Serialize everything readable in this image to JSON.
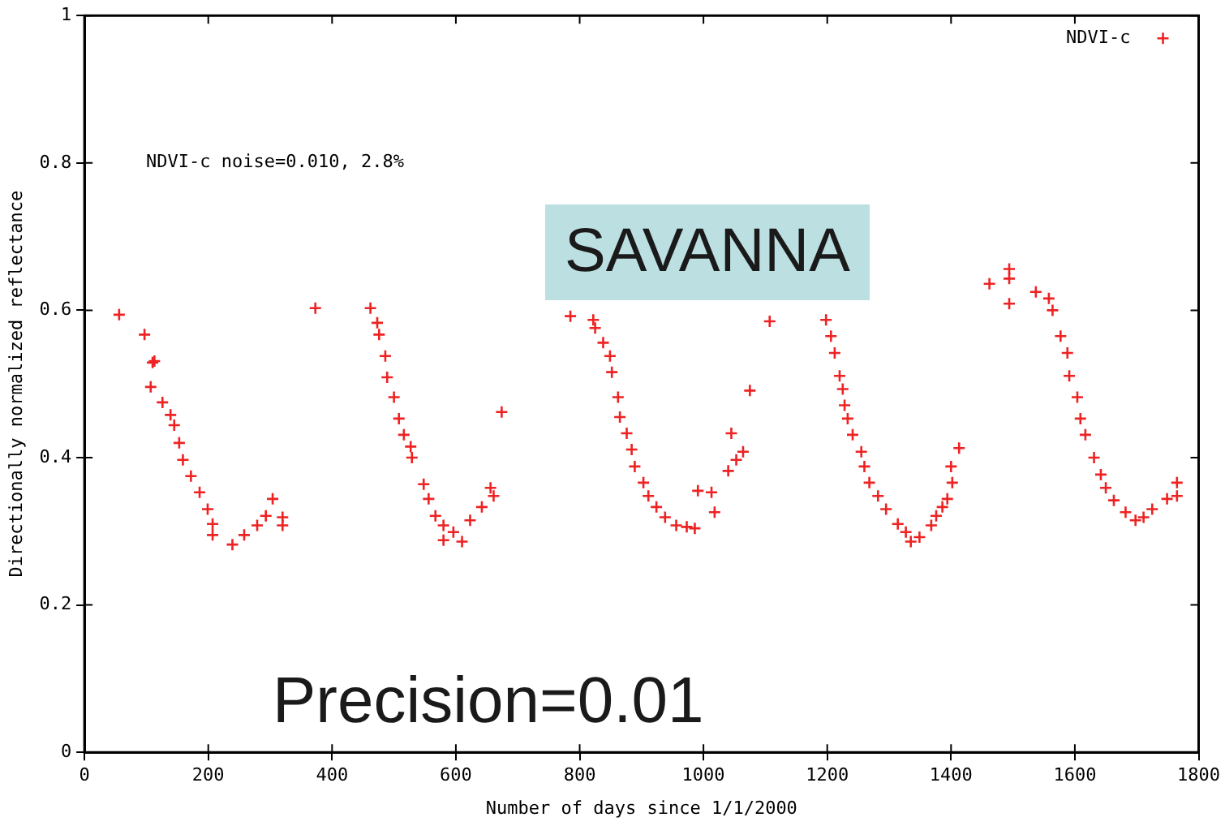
{
  "chart_data": {
    "type": "scatter",
    "xlabel": "Number of days since 1/1/2000",
    "ylabel": "Directionally normalized reflectance",
    "xlim": [
      0,
      1800
    ],
    "xticks": [
      0,
      200,
      400,
      600,
      800,
      1000,
      1200,
      1400,
      1600,
      1800
    ],
    "ylim": [
      0,
      1
    ],
    "yticks": [
      0,
      0.2,
      0.4,
      0.6,
      0.8,
      1
    ],
    "grid": false,
    "legend": "top right",
    "marker": "cross",
    "annotations": [
      "NDVI-c noise=0.010, 2.8%",
      "SAVANNA",
      "Precision=0.01"
    ],
    "series": [
      {
        "name": "NDVI-c",
        "color": "#ee2222",
        "x": [
          56,
          97,
          110,
          113,
          107,
          126,
          139,
          145,
          153,
          159,
          172,
          186,
          199,
          207,
          207,
          239,
          258,
          279,
          293,
          304,
          320,
          320,
          373,
          462,
          473,
          476,
          486,
          489,
          500,
          508,
          516,
          527,
          529,
          548,
          556,
          567,
          580,
          596,
          610,
          580,
          623,
          642,
          656,
          661,
          674,
          785,
          822,
          825,
          838,
          849,
          852,
          862,
          865,
          876,
          884,
          889,
          903,
          911,
          924,
          938,
          956,
          973,
          986,
          991,
          1013,
          1018,
          1040,
          1053,
          1064,
          1045,
          1075,
          1107,
          1198,
          1206,
          1212,
          1220,
          1225,
          1228,
          1233,
          1241,
          1255,
          1260,
          1268,
          1282,
          1295,
          1314,
          1327,
          1335,
          1349,
          1368,
          1376,
          1386,
          1394,
          1402,
          1400,
          1413,
          1462,
          1494,
          1494,
          1494,
          1537,
          1558,
          1564,
          1577,
          1588,
          1591,
          1604,
          1609,
          1617,
          1631,
          1642,
          1650,
          1663,
          1682,
          1698,
          1711,
          1725,
          1749,
          1765,
          1765
        ],
        "values": [
          0.594,
          0.567,
          0.529,
          0.531,
          0.496,
          0.475,
          0.458,
          0.444,
          0.42,
          0.397,
          0.375,
          0.353,
          0.33,
          0.31,
          0.295,
          0.282,
          0.295,
          0.308,
          0.321,
          0.344,
          0.319,
          0.308,
          0.603,
          0.603,
          0.583,
          0.567,
          0.538,
          0.509,
          0.482,
          0.453,
          0.431,
          0.415,
          0.4,
          0.364,
          0.344,
          0.321,
          0.308,
          0.299,
          0.286,
          0.288,
          0.315,
          0.333,
          0.359,
          0.348,
          0.462,
          0.592,
          0.587,
          0.576,
          0.556,
          0.538,
          0.516,
          0.482,
          0.455,
          0.433,
          0.411,
          0.388,
          0.366,
          0.348,
          0.333,
          0.319,
          0.308,
          0.306,
          0.304,
          0.355,
          0.353,
          0.326,
          0.382,
          0.397,
          0.408,
          0.433,
          0.491,
          0.585,
          0.587,
          0.565,
          0.542,
          0.511,
          0.493,
          0.471,
          0.453,
          0.431,
          0.408,
          0.388,
          0.366,
          0.348,
          0.33,
          0.31,
          0.299,
          0.286,
          0.292,
          0.308,
          0.321,
          0.333,
          0.344,
          0.366,
          0.388,
          0.413,
          0.636,
          0.656,
          0.643,
          0.609,
          0.625,
          0.616,
          0.6,
          0.565,
          0.542,
          0.511,
          0.482,
          0.453,
          0.431,
          0.4,
          0.377,
          0.359,
          0.342,
          0.326,
          0.315,
          0.319,
          0.33,
          0.344,
          0.366,
          0.348
        ]
      }
    ]
  }
}
